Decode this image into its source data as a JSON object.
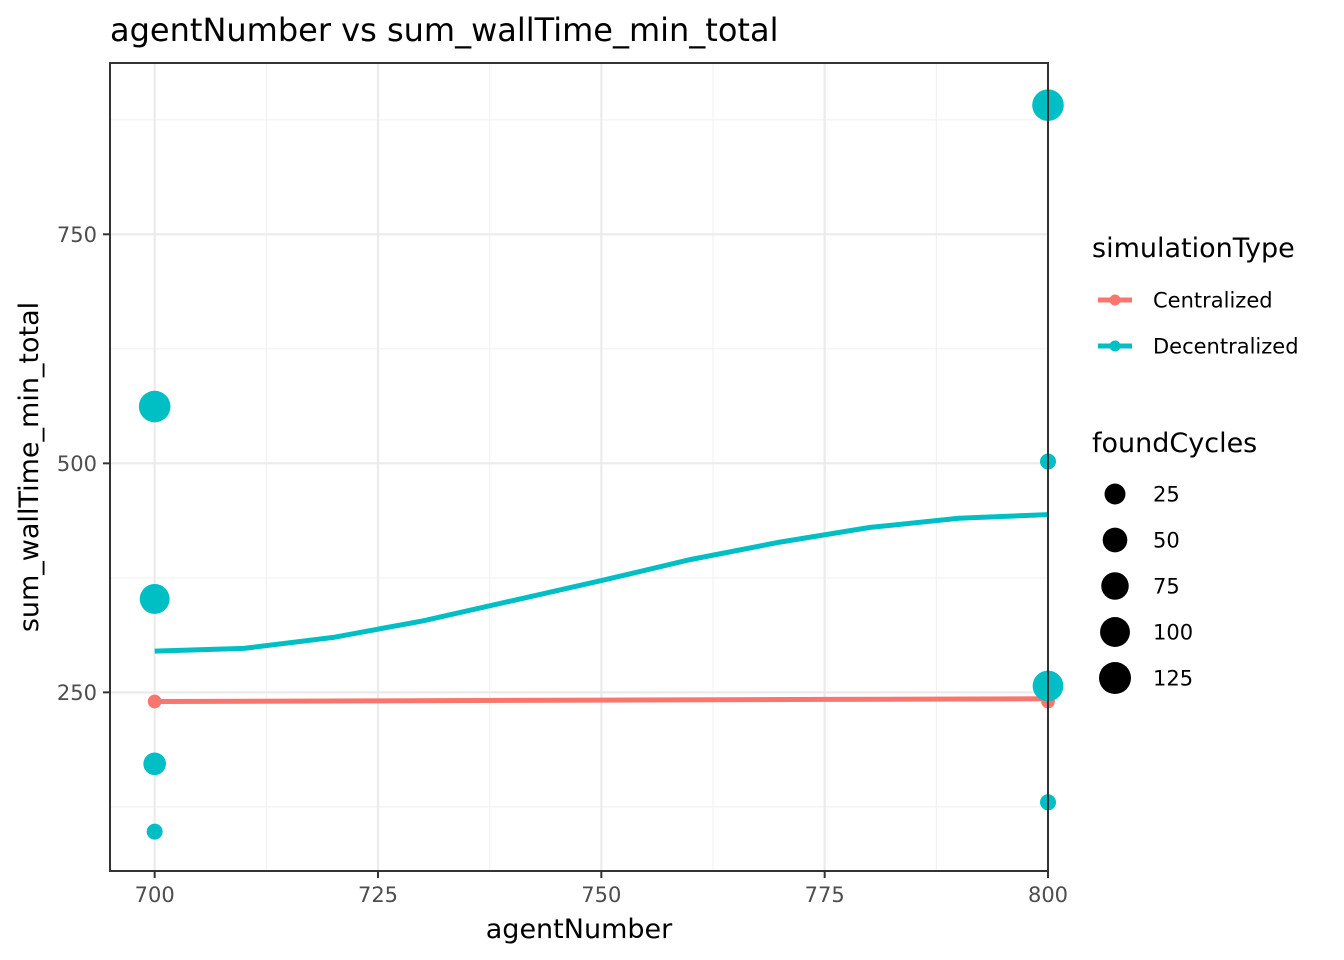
{
  "chart_data": {
    "type": "scatter",
    "title": "agentNumber  vs  sum_wallTime_min_total",
    "xlabel": "agentNumber",
    "ylabel": "sum_wallTime_min_total",
    "xlim": [
      695,
      800
    ],
    "ylim": [
      55,
      937
    ],
    "x_ticks": [
      700,
      725,
      750,
      775,
      800
    ],
    "x_tick_labels": [
      "700",
      "725",
      "750",
      "775",
      "800"
    ],
    "y_ticks": [
      250,
      500,
      750
    ],
    "y_tick_labels": [
      "250",
      "500",
      "750"
    ],
    "grid": true,
    "legend_position": "right",
    "series": [
      {
        "name": "Centralized",
        "color": "#F8766D",
        "points": [
          {
            "x": 700,
            "y": 240,
            "size": 1
          },
          {
            "x": 800,
            "y": 240,
            "size": 1
          }
        ],
        "trend": [
          {
            "x": 700,
            "y": 240
          },
          {
            "x": 725,
            "y": 240.7
          },
          {
            "x": 750,
            "y": 241.5
          },
          {
            "x": 775,
            "y": 242.3
          },
          {
            "x": 800,
            "y": 243
          }
        ]
      },
      {
        "name": "Decentralized",
        "color": "#00BFC4",
        "points": [
          {
            "x": 700,
            "y": 562,
            "size": 120
          },
          {
            "x": 700,
            "y": 352,
            "size": 100
          },
          {
            "x": 700,
            "y": 172,
            "size": 35
          },
          {
            "x": 700,
            "y": 98,
            "size": 5
          },
          {
            "x": 800,
            "y": 891,
            "size": 120
          },
          {
            "x": 800,
            "y": 502,
            "size": 5
          },
          {
            "x": 800,
            "y": 257,
            "size": 110
          },
          {
            "x": 800,
            "y": 130,
            "size": 5
          }
        ],
        "trend": [
          {
            "x": 700,
            "y": 295
          },
          {
            "x": 710,
            "y": 298
          },
          {
            "x": 720,
            "y": 310
          },
          {
            "x": 730,
            "y": 328
          },
          {
            "x": 740,
            "y": 350
          },
          {
            "x": 750,
            "y": 372
          },
          {
            "x": 760,
            "y": 395
          },
          {
            "x": 770,
            "y": 414
          },
          {
            "x": 780,
            "y": 430
          },
          {
            "x": 790,
            "y": 440
          },
          {
            "x": 800,
            "y": 444
          }
        ]
      }
    ],
    "color_legend": {
      "title": "simulationType",
      "entries": [
        "Centralized",
        "Decentralized"
      ]
    },
    "size_legend": {
      "title": "foundCycles",
      "values": [
        25,
        50,
        75,
        100,
        125
      ],
      "labels": [
        "25",
        "50",
        "75",
        "100",
        "125"
      ],
      "color": "#000000"
    }
  }
}
